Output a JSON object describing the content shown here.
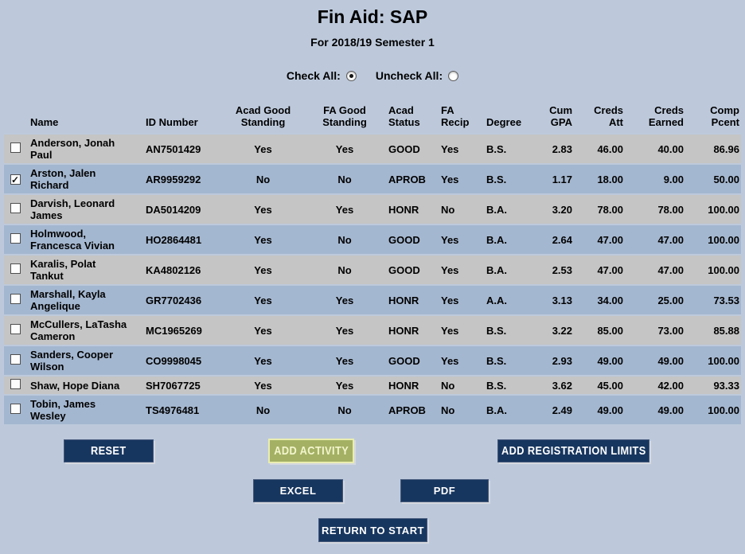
{
  "page": {
    "title": "Fin Aid: SAP",
    "subtitle": "For 2018/19 Semester 1"
  },
  "controls": {
    "check_all_label": "Check All:",
    "uncheck_all_label": "Uncheck All:",
    "check_all_selected": true,
    "uncheck_all_selected": false
  },
  "table": {
    "columns": [
      "",
      "Name",
      "ID Number",
      "Acad Good\nStanding",
      "FA Good\nStanding",
      "Acad\nStatus",
      "FA\nRecip",
      "Degree",
      "Cum\nGPA",
      "Creds\nAtt",
      "Creds\nEarned",
      "Comp\nPcent"
    ],
    "rows": [
      {
        "checked": false,
        "name": "Anderson, Jonah Paul",
        "id_number": "AN7501429",
        "acad_good_standing": "Yes",
        "fa_good_standing": "Yes",
        "acad_status": "GOOD",
        "fa_recip": "Yes",
        "degree": "B.S.",
        "cum_gpa": "2.83",
        "creds_att": "46.00",
        "creds_earned": "40.00",
        "comp_pcent": "86.96"
      },
      {
        "checked": true,
        "name": "Arston, Jalen Richard",
        "id_number": "AR9959292",
        "acad_good_standing": "No",
        "fa_good_standing": "No",
        "acad_status": "APROB",
        "fa_recip": "Yes",
        "degree": "B.S.",
        "cum_gpa": "1.17",
        "creds_att": "18.00",
        "creds_earned": "9.00",
        "comp_pcent": "50.00"
      },
      {
        "checked": false,
        "name": "Darvish, Leonard James",
        "id_number": "DA5014209",
        "acad_good_standing": "Yes",
        "fa_good_standing": "Yes",
        "acad_status": "HONR",
        "fa_recip": "No",
        "degree": "B.A.",
        "cum_gpa": "3.20",
        "creds_att": "78.00",
        "creds_earned": "78.00",
        "comp_pcent": "100.00"
      },
      {
        "checked": false,
        "name": "Holmwood, Francesca Vivian",
        "id_number": "HO2864481",
        "acad_good_standing": "Yes",
        "fa_good_standing": "No",
        "acad_status": "GOOD",
        "fa_recip": "Yes",
        "degree": "B.A.",
        "cum_gpa": "2.64",
        "creds_att": "47.00",
        "creds_earned": "47.00",
        "comp_pcent": "100.00"
      },
      {
        "checked": false,
        "name": "Karalis, Polat Tankut",
        "id_number": "KA4802126",
        "acad_good_standing": "Yes",
        "fa_good_standing": "No",
        "acad_status": "GOOD",
        "fa_recip": "Yes",
        "degree": "B.A.",
        "cum_gpa": "2.53",
        "creds_att": "47.00",
        "creds_earned": "47.00",
        "comp_pcent": "100.00"
      },
      {
        "checked": false,
        "name": "Marshall, Kayla Angelique",
        "id_number": "GR7702436",
        "acad_good_standing": "Yes",
        "fa_good_standing": "Yes",
        "acad_status": "HONR",
        "fa_recip": "Yes",
        "degree": "A.A.",
        "cum_gpa": "3.13",
        "creds_att": "34.00",
        "creds_earned": "25.00",
        "comp_pcent": "73.53"
      },
      {
        "checked": false,
        "name": "McCullers, LaTasha Cameron",
        "id_number": "MC1965269",
        "acad_good_standing": "Yes",
        "fa_good_standing": "Yes",
        "acad_status": "HONR",
        "fa_recip": "Yes",
        "degree": "B.S.",
        "cum_gpa": "3.22",
        "creds_att": "85.00",
        "creds_earned": "73.00",
        "comp_pcent": "85.88"
      },
      {
        "checked": false,
        "name": "Sanders, Cooper Wilson",
        "id_number": "CO9998045",
        "acad_good_standing": "Yes",
        "fa_good_standing": "Yes",
        "acad_status": "GOOD",
        "fa_recip": "Yes",
        "degree": "B.S.",
        "cum_gpa": "2.93",
        "creds_att": "49.00",
        "creds_earned": "49.00",
        "comp_pcent": "100.00"
      },
      {
        "checked": false,
        "name": "Shaw, Hope Diana",
        "id_number": "SH7067725",
        "acad_good_standing": "Yes",
        "fa_good_standing": "Yes",
        "acad_status": "HONR",
        "fa_recip": "No",
        "degree": "B.S.",
        "cum_gpa": "3.62",
        "creds_att": "45.00",
        "creds_earned": "42.00",
        "comp_pcent": "93.33"
      },
      {
        "checked": false,
        "name": "Tobin, James Wesley",
        "id_number": "TS4976481",
        "acad_good_standing": "No",
        "fa_good_standing": "No",
        "acad_status": "APROB",
        "fa_recip": "No",
        "degree": "B.A.",
        "cum_gpa": "2.49",
        "creds_att": "49.00",
        "creds_earned": "49.00",
        "comp_pcent": "100.00"
      }
    ]
  },
  "buttons": {
    "reset": "RESET",
    "add_activity": "ADD ACTIVITY",
    "add_registration_limits": "ADD REGISTRATION LIMITS",
    "excel": "EXCEL",
    "pdf": "PDF",
    "return_to_start": "RETURN TO START"
  },
  "icons": {
    "checkmark": "✓"
  },
  "colors": {
    "page_background": "#bdc9db",
    "row_gray": "#c5c5c5",
    "row_blue": "#a4b7d0",
    "button_navy": "#17365f",
    "button_olive": "#a4b164",
    "button_olive_text": "#f3f5cd",
    "button_olive_border": "#e9edaf",
    "text": "#000000"
  }
}
